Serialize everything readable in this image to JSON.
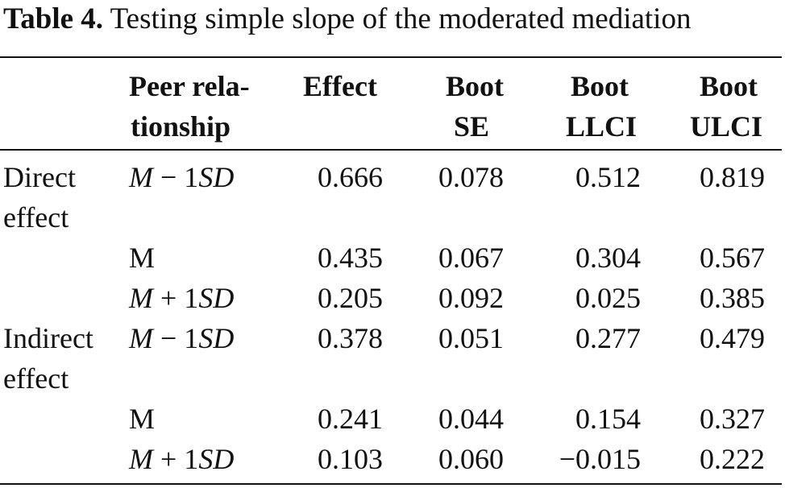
{
  "caption": {
    "label": "Table 4.",
    "text": "Testing simple slope of the moderated mediation"
  },
  "headers": {
    "peer": [
      "Peer rela-",
      "tionship"
    ],
    "effect": [
      "Effect"
    ],
    "boot_se": [
      "Boot",
      "SE"
    ],
    "boot_llci": [
      "Boot",
      "LLCI"
    ],
    "boot_ulci": [
      "Boot",
      "ULCI"
    ]
  },
  "groups": [
    {
      "label_lines": [
        "Direct",
        "effect"
      ],
      "rows": [
        {
          "level": "M − 1SD",
          "effect": "0.666",
          "se": "0.078",
          "llci": "0.512",
          "ulci": "0.819"
        },
        {
          "level": "M",
          "effect": "0.435",
          "se": "0.067",
          "llci": "0.304",
          "ulci": "0.567"
        },
        {
          "level": "M + 1SD",
          "effect": "0.205",
          "se": "0.092",
          "llci": "0.025",
          "ulci": "0.385"
        }
      ]
    },
    {
      "label_lines": [
        "Indirect",
        "effect"
      ],
      "rows": [
        {
          "level": "M − 1SD",
          "effect": "0.378",
          "se": "0.051",
          "llci": "0.277",
          "ulci": "0.479"
        },
        {
          "level": "M",
          "effect": "0.241",
          "se": "0.044",
          "llci": "0.154",
          "ulci": "0.327"
        },
        {
          "level": "M + 1SD",
          "effect": "0.103",
          "se": "0.060",
          "llci": "−0.015",
          "ulci": "0.222"
        }
      ]
    }
  ]
}
